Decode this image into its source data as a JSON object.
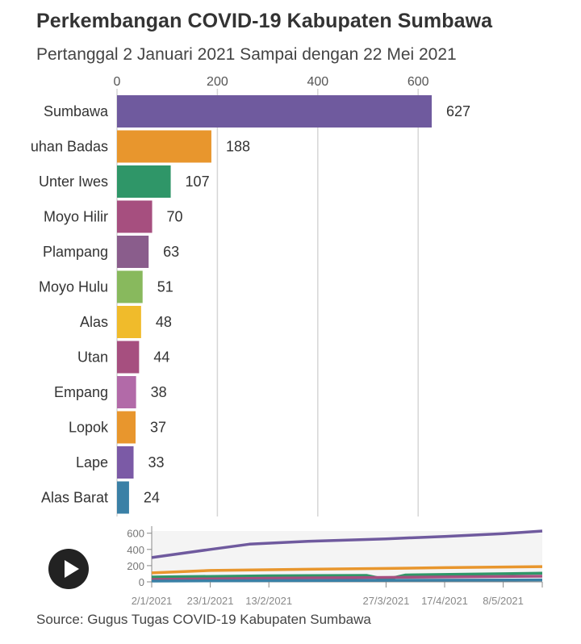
{
  "header": {
    "title": "Perkembangan COVID-19 Kabupaten Sumbawa",
    "subtitle": "Pertanggal 2 Januari 2021 Sampai dengan 22 Mei 2021"
  },
  "footer": {
    "source": "Source: Gugus Tugas COVID-19 Kabupaten Sumbawa"
  },
  "controls": {
    "play_icon": "play-icon"
  },
  "chart_data": [
    {
      "type": "bar",
      "orientation": "horizontal",
      "categories": [
        "Sumbawa",
        "Labuhan Badas",
        "Unter Iwes",
        "Moyo Hilir",
        "Plampang",
        "Moyo Hulu",
        "Alas",
        "Utan",
        "Empang",
        "Lopok",
        "Lape",
        "Alas Barat"
      ],
      "category_labels_shown": [
        "Sumbawa",
        "uhan Badas",
        "Unter Iwes",
        "Moyo Hilir",
        "Plampang",
        "Moyo Hulu",
        "Alas",
        "Utan",
        "Empang",
        "Lopok",
        "Lape",
        "Alas Barat"
      ],
      "values": [
        627,
        188,
        107,
        70,
        63,
        51,
        48,
        44,
        38,
        37,
        33,
        24
      ],
      "colors": [
        "#6f5a9e",
        "#e8962d",
        "#2f9668",
        "#a64f7f",
        "#8a5d8c",
        "#88b95d",
        "#f0bb2b",
        "#a64f7f",
        "#b26aa8",
        "#e8962d",
        "#7b5aa6",
        "#3a80a6"
      ],
      "xticks": [
        0,
        200,
        400,
        600
      ],
      "xlim": [
        0,
        627
      ],
      "axis_position": "top",
      "grid": true
    },
    {
      "type": "line",
      "role": "timeline",
      "x_ticks": [
        "2/1/2021",
        "23/1/2021",
        "13/2/2021",
        "27/3/2021",
        "17/4/2021",
        "8/5/2021"
      ],
      "x_range": [
        "2/1/2021",
        "22/5/2021"
      ],
      "ylim": [
        0,
        627
      ],
      "yticks": [
        0,
        200,
        400,
        600
      ],
      "series": [
        {
          "color": "#6f5a9e",
          "points": [
            [
              "2/1/2021",
              300
            ],
            [
              "23/1/2021",
              400
            ],
            [
              "6/2/2021",
              465
            ],
            [
              "27/2/2021",
              500
            ],
            [
              "27/3/2021",
              530
            ],
            [
              "17/4/2021",
              560
            ],
            [
              "8/5/2021",
              595
            ],
            [
              "22/5/2021",
              627
            ]
          ]
        },
        {
          "color": "#e8962d",
          "points": [
            [
              "2/1/2021",
              110
            ],
            [
              "23/1/2021",
              140
            ],
            [
              "27/2/2021",
              155
            ],
            [
              "27/3/2021",
              165
            ],
            [
              "17/4/2021",
              175
            ],
            [
              "22/5/2021",
              188
            ]
          ]
        },
        {
          "color": "#2f9668",
          "points": [
            [
              "2/1/2021",
              60
            ],
            [
              "13/2/2021",
              75
            ],
            [
              "20/3/2021",
              80
            ],
            [
              "27/3/2021",
              30
            ],
            [
              "3/4/2021",
              85
            ],
            [
              "22/5/2021",
              107
            ]
          ]
        },
        {
          "color": "#a64f7f",
          "points": [
            [
              "2/1/2021",
              30
            ],
            [
              "13/2/2021",
              45
            ],
            [
              "27/3/2021",
              55
            ],
            [
              "22/5/2021",
              70
            ]
          ]
        },
        {
          "color": "#3a80a6",
          "points": [
            [
              "2/1/2021",
              10
            ],
            [
              "13/2/2021",
              15
            ],
            [
              "22/5/2021",
              24
            ]
          ]
        }
      ]
    }
  ]
}
